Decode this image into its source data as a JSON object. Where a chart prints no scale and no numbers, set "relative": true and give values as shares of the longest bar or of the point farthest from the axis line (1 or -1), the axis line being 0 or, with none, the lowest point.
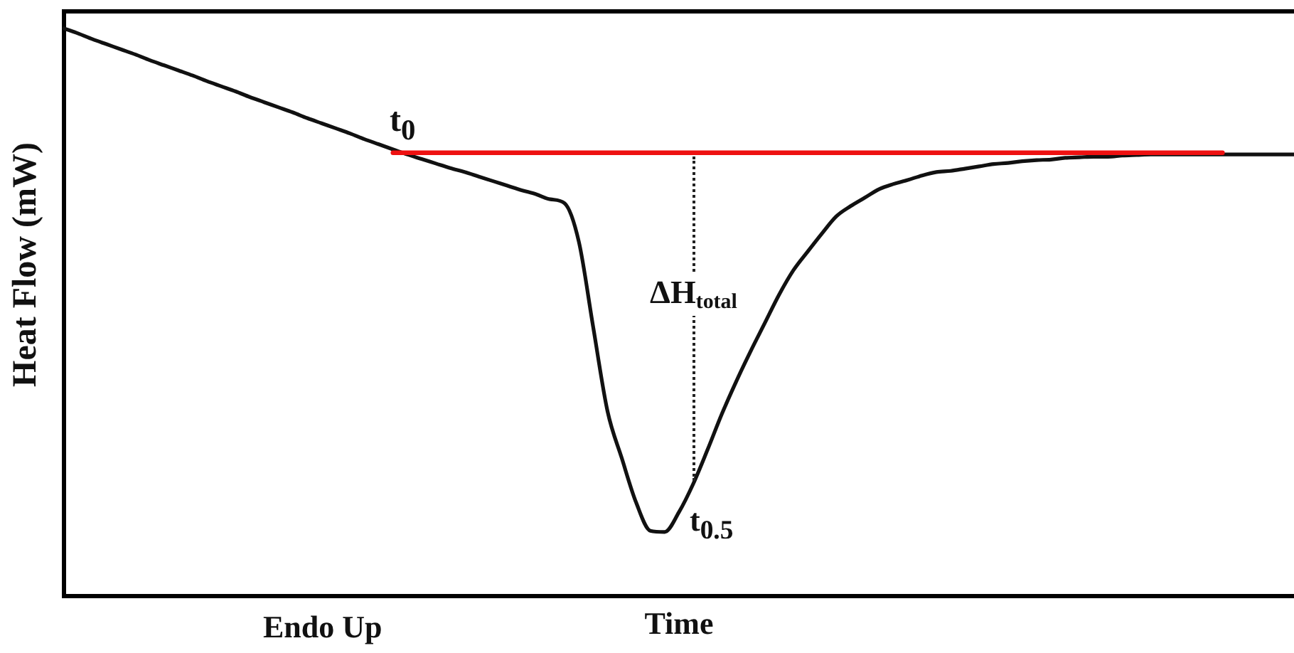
{
  "chart_data": {
    "type": "line",
    "xlabel": "Time",
    "ylabel": "Heat Flow (mW)",
    "relative": true,
    "tick_labels": false,
    "marker": "none",
    "categories": [
      null,
      null,
      null,
      null,
      null,
      null,
      null,
      null,
      null,
      null,
      null,
      null,
      null,
      null,
      null,
      null,
      null,
      null,
      null,
      null,
      null,
      null,
      null,
      null,
      null,
      null,
      null,
      null,
      null,
      null,
      null,
      null,
      null,
      null,
      null,
      null,
      null,
      null,
      null,
      null,
      null,
      null,
      null,
      null,
      null,
      null,
      null,
      null,
      null,
      null,
      null,
      null,
      null,
      null,
      null,
      null,
      null,
      null,
      null,
      null,
      null,
      null,
      null,
      null,
      null,
      null,
      null,
      null,
      null,
      null,
      null,
      null,
      null,
      null,
      null,
      null,
      null,
      null,
      null,
      null,
      null,
      null,
      null,
      null,
      null,
      null,
      null
    ],
    "series": [
      {
        "color": "#111111",
        "values": [
          1.0,
          0.991,
          0.981,
          0.972,
          0.963,
          0.954,
          0.944,
          0.935,
          0.926,
          0.917,
          0.907,
          0.898,
          0.889,
          0.879,
          0.87,
          0.861,
          0.852,
          0.842,
          0.833,
          0.824,
          0.815,
          0.805,
          0.796,
          0.787,
          0.778,
          0.77,
          0.762,
          0.754,
          0.747,
          0.739,
          0.731,
          0.723,
          0.715,
          0.708,
          0.699,
          0.692,
          0.624,
          0.474,
          0.326,
          0.243,
          0.165,
          0.115,
          0.113,
          0.148,
          0.198,
          0.258,
          0.321,
          0.378,
          0.431,
          0.481,
          0.531,
          0.574,
          0.607,
          0.639,
          0.669,
          0.687,
          0.702,
          0.717,
          0.726,
          0.733,
          0.741,
          0.747,
          0.749,
          0.753,
          0.757,
          0.761,
          0.763,
          0.766,
          0.768,
          0.769,
          0.772,
          0.773,
          0.774,
          0.774,
          0.776,
          0.777,
          0.778,
          0.778,
          0.778,
          0.778,
          0.778,
          0.778,
          0.778,
          0.778,
          0.778,
          0.778,
          0.778
        ]
      },
      {
        "color": "#ee1111",
        "values": [
          null,
          null,
          null,
          null,
          null,
          null,
          null,
          null,
          null,
          null,
          null,
          null,
          null,
          null,
          null,
          null,
          null,
          null,
          null,
          null,
          null,
          null,
          null,
          0.781,
          0.781,
          0.781,
          0.781,
          0.781,
          0.781,
          0.781,
          0.781,
          0.781,
          0.781,
          0.781,
          0.781,
          0.781,
          0.781,
          0.781,
          0.781,
          0.781,
          0.781,
          0.781,
          0.781,
          0.781,
          0.781,
          0.781,
          0.781,
          0.781,
          0.781,
          0.781,
          0.781,
          0.781,
          0.781,
          0.781,
          0.781,
          0.781,
          0.781,
          0.781,
          0.781,
          0.781,
          0.781,
          0.781,
          0.781,
          0.781,
          0.781,
          0.781,
          0.781,
          0.781,
          0.781,
          0.781,
          0.781,
          0.781,
          0.781,
          0.781,
          0.781,
          0.781,
          0.781,
          0.781,
          0.781,
          0.781,
          0.781,
          0.781,
          null,
          null,
          null,
          null,
          null
        ]
      }
    ],
    "annotations": [
      "t$_{0}$",
      "ΔH$_{total}$",
      "t$_{0.5}$",
      "Endo Up"
    ]
  }
}
